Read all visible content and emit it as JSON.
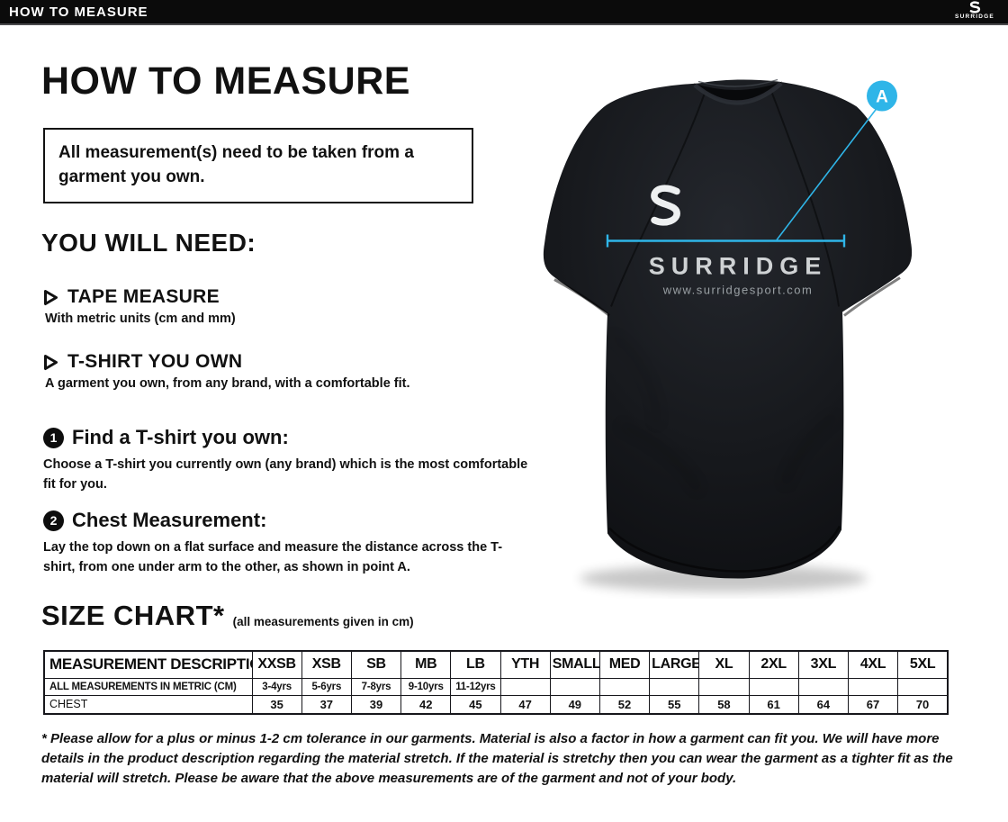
{
  "topbar": {
    "title": "HOW TO MEASURE",
    "logo_text": "SURRIDGE"
  },
  "main": {
    "heading": "HOW TO MEASURE",
    "notice": "All measurement(s) need to be taken from a garment you own.",
    "you_will_need": {
      "heading": "YOU WILL NEED:",
      "items": [
        {
          "title": "TAPE MEASURE",
          "description": "With metric units (cm and mm)"
        },
        {
          "title": "T-SHIRT YOU OWN",
          "description": "A garment you own, from any brand, with a comfortable fit."
        }
      ]
    },
    "steps": [
      {
        "number": "1",
        "title": "Find a T-shirt you own:",
        "description": "Choose a T-shirt you currently own (any brand) which is the most comfortable fit for you."
      },
      {
        "number": "2",
        "title": "Chest Measurement:",
        "description": "Lay the top down on a flat surface and measure the distance across the T-shirt, from one under arm to the other, as shown in point A."
      }
    ],
    "footnote": "* Please allow for a plus or minus 1-2 cm tolerance in our garments. Material is also a factor in how a garment can fit you. We will have more details in the product description regarding the material stretch.  If the material is stretchy then you can wear the garment as a tighter fit as the material will stretch.  Please be aware that the above measurements are of the garment and not of your body."
  },
  "size_chart": {
    "heading": "SIZE CHART*",
    "note": "(all measurements given in cm)",
    "table": {
      "header": [
        "MEASUREMENT DESCRIPTION",
        "XXSB",
        "XSB",
        "SB",
        "MB",
        "LB",
        "YTH",
        "SMALL",
        "MED",
        "LARGE",
        "XL",
        "2XL",
        "3XL",
        "4XL",
        "5XL"
      ],
      "rows": [
        [
          "ALL MEASUREMENTS IN METRIC (CM)",
          "3-4yrs",
          "5-6yrs",
          "7-8yrs",
          "9-10yrs",
          "11-12yrs",
          "",
          "",
          "",
          "",
          "",
          "",
          "",
          "",
          ""
        ],
        [
          "CHEST",
          "35",
          "37",
          "39",
          "42",
          "45",
          "47",
          "49",
          "52",
          "55",
          "58",
          "61",
          "64",
          "67",
          "70"
        ]
      ]
    }
  },
  "shirt": {
    "brand": "SURRIDGE",
    "website": "www.surridgesport.com",
    "marker_label": "A"
  },
  "colors": {
    "accent": "#2fb5e8",
    "shirt": "#17191d",
    "topbar": "#0b0b0b"
  }
}
